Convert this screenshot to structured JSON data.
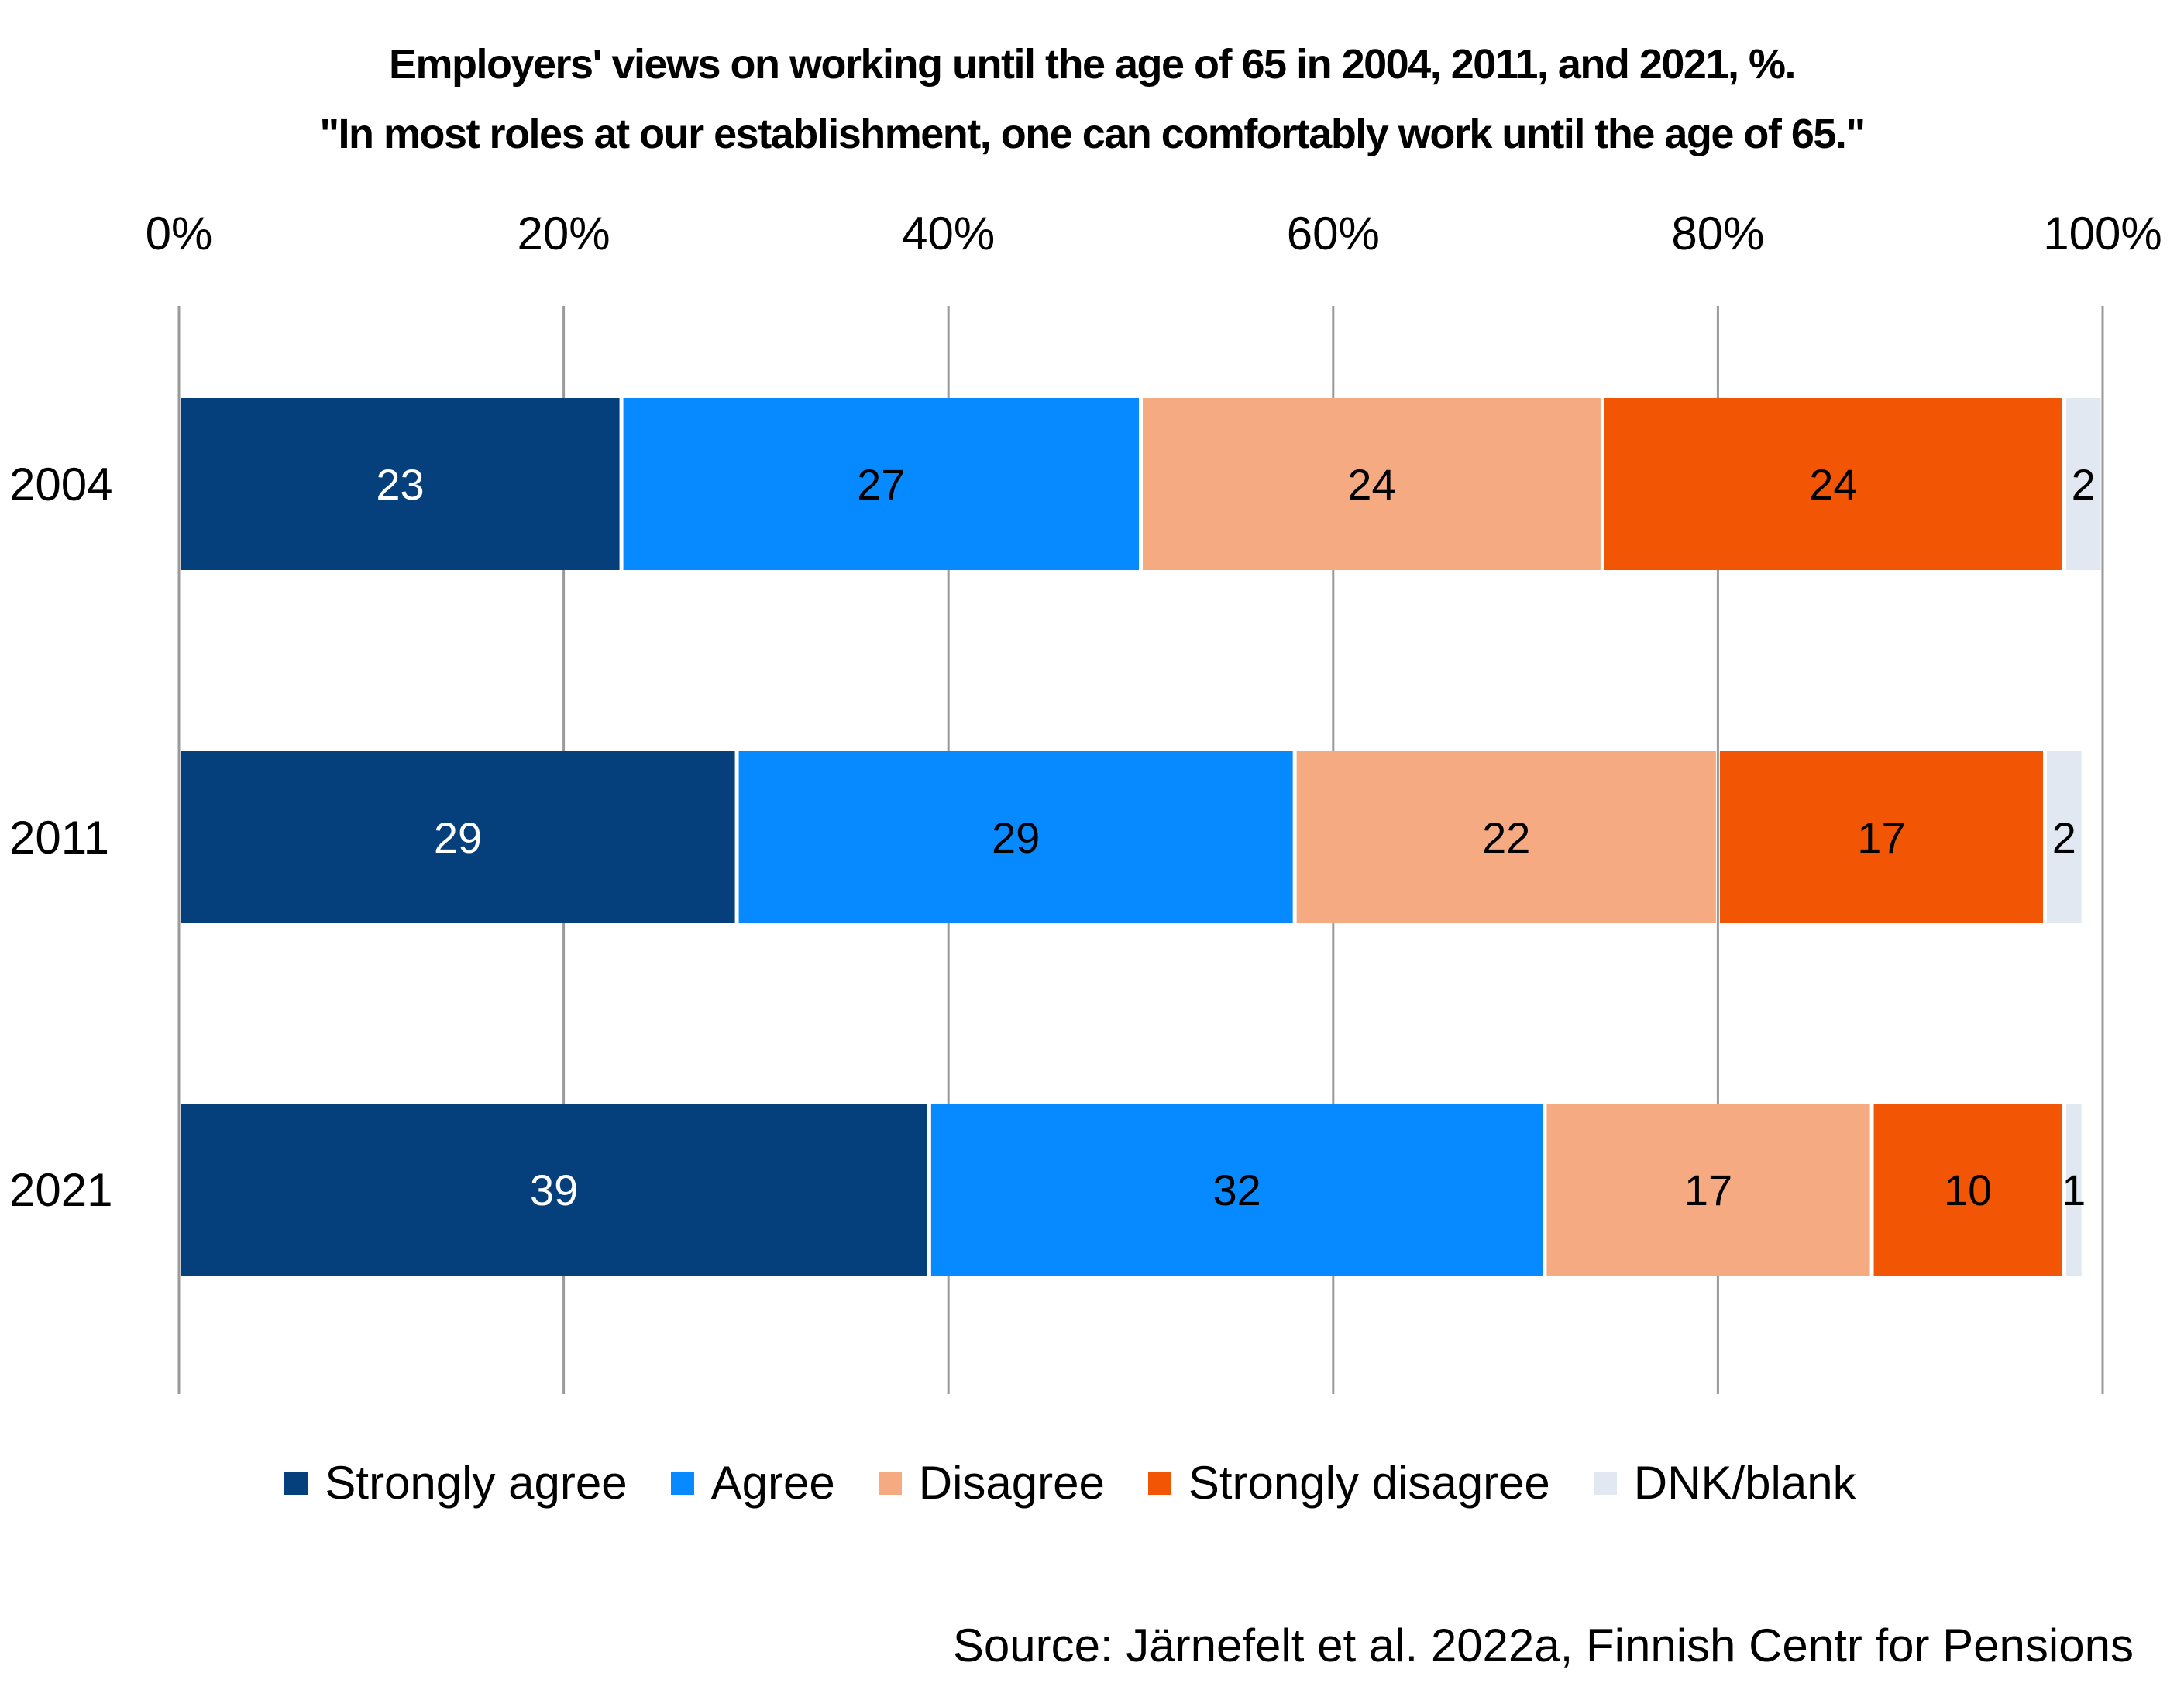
{
  "chart_data": {
    "type": "bar",
    "orientation": "horizontal",
    "stacked": true,
    "title": "Employers' views on working until the age of 65 in 2004, 2011, and 2021, %.",
    "subtitle": "\"In most roles at our establishment, one can comfortably work until the age of 65.\"",
    "categories": [
      "2004",
      "2011",
      "2021"
    ],
    "series": [
      {
        "name": "Strongly agree",
        "color": "#06407C",
        "label_color": "#FFFFFF",
        "values": [
          23,
          29,
          39
        ]
      },
      {
        "name": "Agree",
        "color": "#0789FF",
        "label_color": "#000000",
        "values": [
          27,
          29,
          32
        ]
      },
      {
        "name": "Disagree",
        "color": "#F5AA82",
        "label_color": "#000000",
        "values": [
          24,
          22,
          17
        ]
      },
      {
        "name": "Strongly disagree",
        "color": "#F25504",
        "label_color": "#000000",
        "values": [
          24,
          17,
          10
        ]
      },
      {
        "name": "DNK/blank",
        "color": "#E1E8F1",
        "label_color": "#000000",
        "values": [
          2,
          2,
          1
        ]
      }
    ],
    "xaxis": {
      "ticks": [
        "0%",
        "20%",
        "40%",
        "60%",
        "80%",
        "100%"
      ],
      "tick_values": [
        0,
        20,
        40,
        60,
        80,
        100
      ],
      "position": "top"
    },
    "xlim": [
      0,
      100
    ],
    "grid": true,
    "legend_position": "bottom",
    "source": "Source: Järnefelt et al. 2022a, Finnish Centr for Pensions"
  }
}
